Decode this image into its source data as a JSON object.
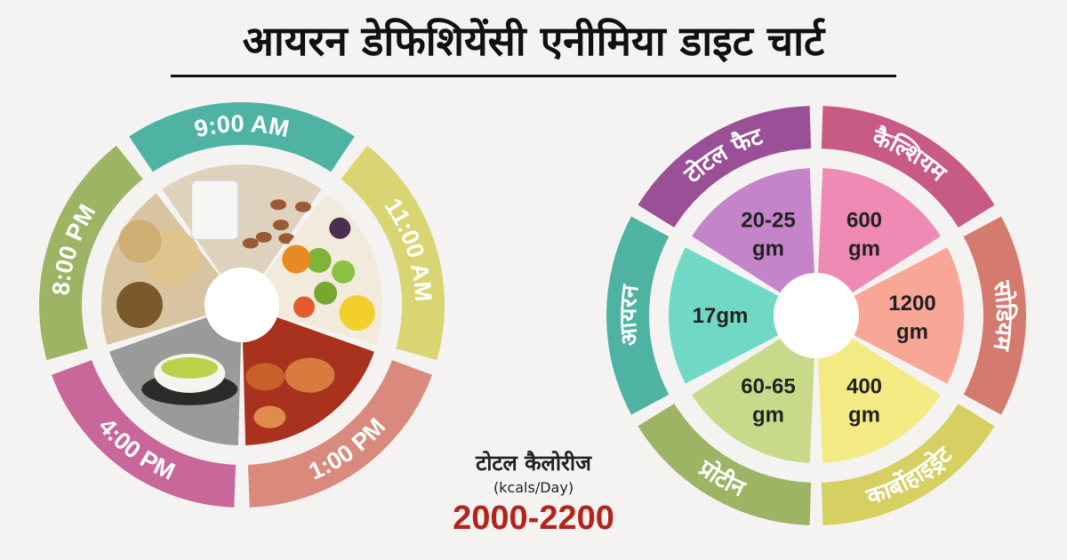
{
  "title": "आयरन डेफिशियेंसी एनीमिया डाइट चार्ट",
  "meal_times": [
    {
      "label": "9:00 AM",
      "color": "#4fb3a4",
      "food": "milk-almonds"
    },
    {
      "label": "11:00 AM",
      "color": "#d9d572",
      "food": "fruits"
    },
    {
      "label": "1:00 PM",
      "color": "#d98a7d",
      "food": "fish-curry"
    },
    {
      "label": "4:00 PM",
      "color": "#c8679a",
      "food": "green-tea"
    },
    {
      "label": "8:00 PM",
      "color": "#9db464",
      "food": "roti-sabzi"
    }
  ],
  "nutrients": [
    {
      "name": "टोटल फैट",
      "value": "20-25\ngm",
      "ring_color": "#9b4f96",
      "fill_color": "#c583c9"
    },
    {
      "name": "कैल्शियम",
      "value": "600\ngm",
      "ring_color": "#c85a86",
      "fill_color": "#ee8ab3"
    },
    {
      "name": "सोडियम",
      "value": "1200\ngm",
      "ring_color": "#d47a6e",
      "fill_color": "#f8a797"
    },
    {
      "name": "कार्बोहाइड्रेट",
      "value": "400\ngm",
      "ring_color": "#d6d062",
      "fill_color": "#f3ea84"
    },
    {
      "name": "प्रोटीन",
      "value": "60-65\ngm",
      "ring_color": "#9db464",
      "fill_color": "#c9d98a"
    },
    {
      "name": "आयरन",
      "value": "17gm",
      "ring_color": "#4fb3a4",
      "fill_color": "#70d9c6"
    }
  ],
  "calories": {
    "title": "टोटल कैलोरीज",
    "unit": "(kcals/Day)",
    "value": "2000-2200"
  }
}
